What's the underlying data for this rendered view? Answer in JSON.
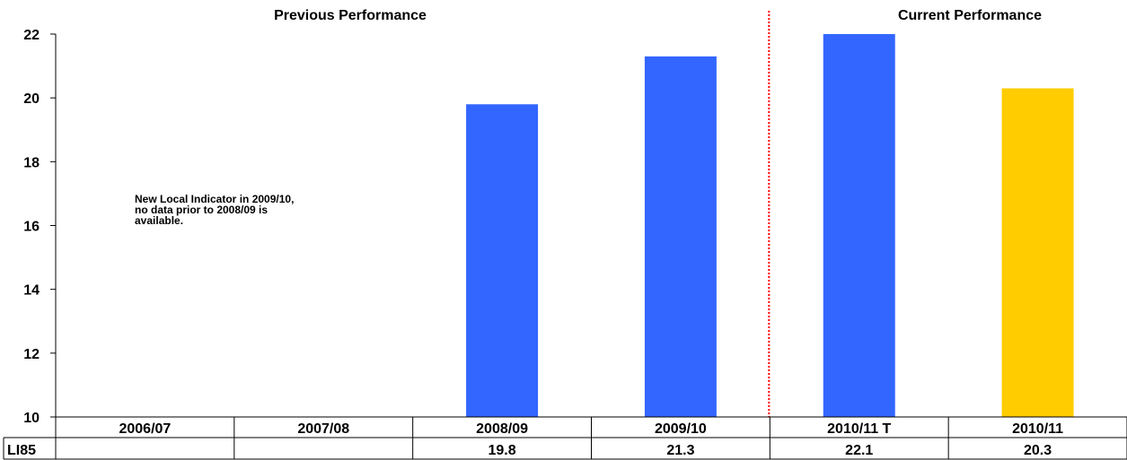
{
  "chart_data": {
    "type": "bar",
    "section_labels": {
      "previous": "Previous Performance",
      "current": "Current Performance"
    },
    "categories": [
      "2006/07",
      "2007/08",
      "2008/09",
      "2009/10",
      "2010/11 T",
      "2010/11"
    ],
    "values": [
      null,
      null,
      19.8,
      21.3,
      22.1,
      20.3
    ],
    "bar_colors": [
      "#3366ff",
      "#3366ff",
      "#3366ff",
      "#3366ff",
      "#3366ff",
      "#ffcc00"
    ],
    "ylim": [
      10,
      22
    ],
    "yticks": [
      10,
      12,
      14,
      16,
      18,
      20,
      22
    ],
    "annotation_lines": [
      "New Local Indicator in 2009/10,",
      "no data prior to 2008/09 is",
      "available."
    ],
    "table": {
      "row_label": "LI85",
      "cells": [
        "",
        "",
        "19.8",
        "21.3",
        "22.1",
        "20.3"
      ]
    },
    "divider_color": "#ff0000"
  }
}
